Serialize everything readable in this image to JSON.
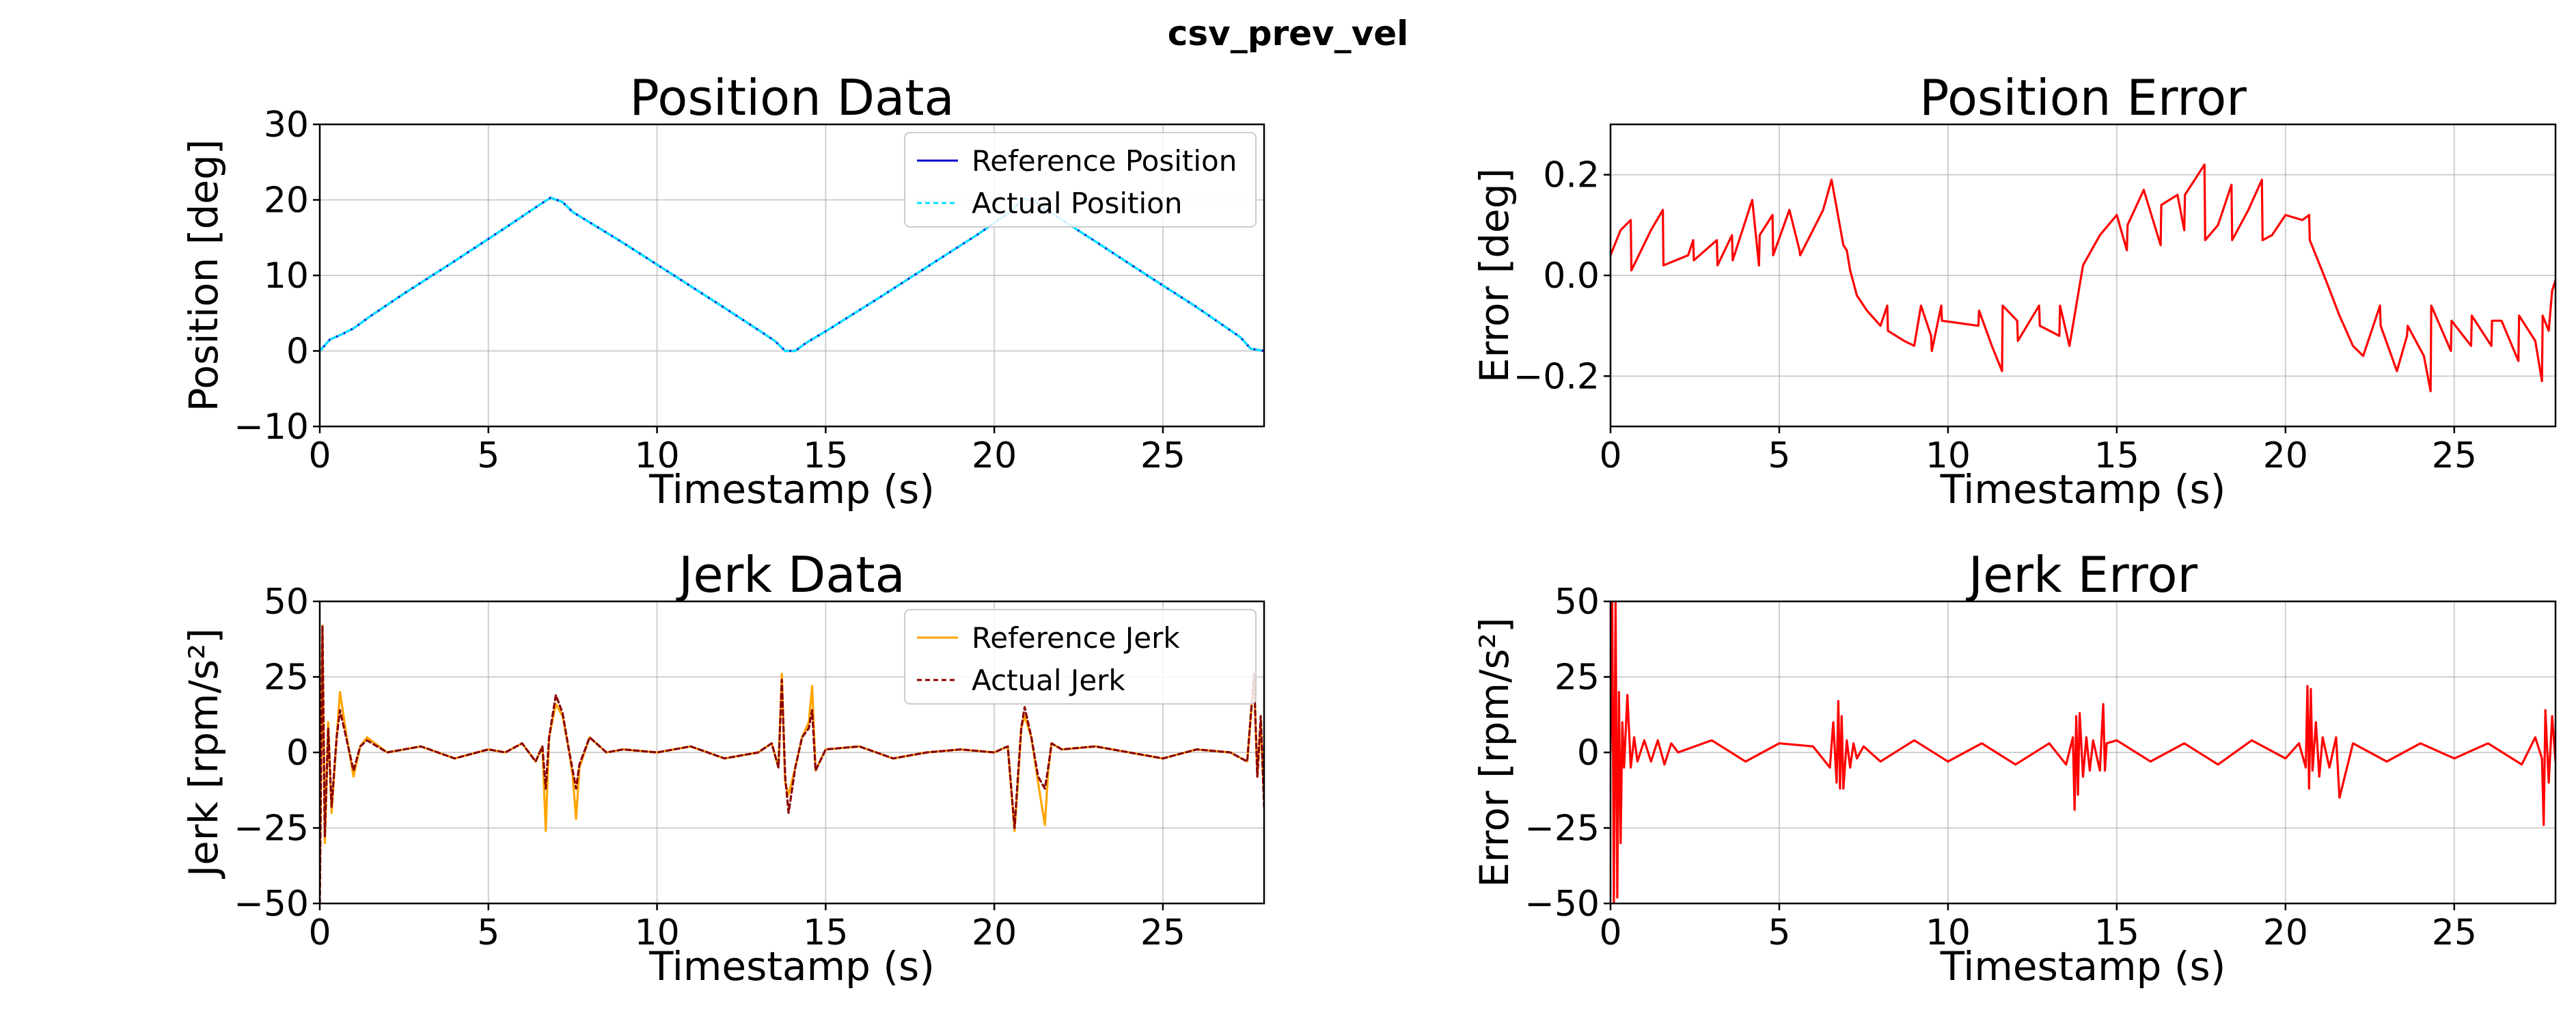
{
  "figure": {
    "suptitle": "csv_prev_vel"
  },
  "chart_data": [
    {
      "type": "line",
      "title": "Position Data",
      "xlabel": "Timestamp (s)",
      "ylabel": "Position [deg]",
      "xlim": [
        0,
        28
      ],
      "ylim": [
        -10,
        30
      ],
      "xticks": [
        0,
        5,
        10,
        15,
        20,
        25
      ],
      "yticks": [
        -10,
        0,
        10,
        20,
        30
      ],
      "ytick_labels": [
        "−10",
        "0",
        "10",
        "20",
        "30"
      ],
      "grid": true,
      "legend_position": "top-right",
      "series": [
        {
          "name": "Reference Position",
          "color": "#0000cc",
          "dash": "solid",
          "x": [
            0,
            0.3,
            0.7,
            1.0,
            1.5,
            2.5,
            4.0,
            5.5,
            6.5,
            6.85,
            7.2,
            7.5,
            9.0,
            10.5,
            12.0,
            13.0,
            13.5,
            13.8,
            14.1,
            14.4,
            15.0,
            16.5,
            18.0,
            19.5,
            20.5,
            20.85,
            21.2,
            21.5,
            23.0,
            24.5,
            26.0,
            27.3,
            27.6,
            28.0
          ],
          "y": [
            0,
            1.5,
            2.3,
            3.0,
            4.6,
            7.6,
            11.9,
            16.3,
            19.3,
            20.3,
            19.7,
            18.4,
            14.3,
            10.0,
            5.7,
            2.8,
            1.3,
            0.0,
            0.0,
            1.0,
            2.6,
            6.8,
            11.1,
            15.4,
            18.5,
            20.2,
            19.8,
            18.8,
            14.5,
            10.1,
            5.8,
            1.8,
            0.3,
            0.0
          ]
        },
        {
          "name": "Actual Position",
          "color": "#00e5ff",
          "dash": "dashed",
          "x": [
            0,
            0.3,
            0.7,
            1.0,
            1.5,
            2.5,
            4.0,
            5.5,
            6.5,
            6.85,
            7.2,
            7.5,
            9.0,
            10.5,
            12.0,
            13.0,
            13.5,
            13.8,
            14.1,
            14.4,
            15.0,
            16.5,
            18.0,
            19.5,
            20.5,
            20.85,
            21.2,
            21.5,
            23.0,
            24.5,
            26.0,
            27.3,
            27.6,
            28.0
          ],
          "y": [
            0,
            1.5,
            2.3,
            3.0,
            4.6,
            7.6,
            11.9,
            16.3,
            19.3,
            20.3,
            19.7,
            18.4,
            14.3,
            10.0,
            5.7,
            2.8,
            1.3,
            0.0,
            0.0,
            1.0,
            2.6,
            6.8,
            11.1,
            15.4,
            18.5,
            20.2,
            19.8,
            18.8,
            14.5,
            10.1,
            5.8,
            1.8,
            0.3,
            0.0
          ]
        }
      ]
    },
    {
      "type": "line",
      "title": "Position Error",
      "xlabel": "Timestamp (s)",
      "ylabel": "Error [deg]",
      "xlim": [
        0,
        28
      ],
      "ylim": [
        -0.3,
        0.3
      ],
      "xticks": [
        0,
        5,
        10,
        15,
        20,
        25
      ],
      "yticks": [
        -0.2,
        0.0,
        0.2
      ],
      "ytick_labels": [
        "−0.2",
        "0.0",
        "0.2"
      ],
      "grid": true,
      "series": [
        {
          "name": "",
          "color": "#ff0000",
          "dash": "solid",
          "x": [
            0,
            0.3,
            0.6,
            0.62,
            1.2,
            1.55,
            1.57,
            2.3,
            2.45,
            2.47,
            3.15,
            3.17,
            3.6,
            3.62,
            4.2,
            4.4,
            4.42,
            4.8,
            4.82,
            5.3,
            5.6,
            5.62,
            6.3,
            6.55,
            6.9,
            7.0,
            7.1,
            7.3,
            7.6,
            8.0,
            8.2,
            8.22,
            8.7,
            9.0,
            9.2,
            9.5,
            9.52,
            9.8,
            9.82,
            10.9,
            10.92,
            11.3,
            11.6,
            11.62,
            12.05,
            12.07,
            12.7,
            12.72,
            13.3,
            13.32,
            13.6,
            14.0,
            14.5,
            15.0,
            15.3,
            15.32,
            15.8,
            16.3,
            16.32,
            16.8,
            17.0,
            17.02,
            17.6,
            17.62,
            18.0,
            18.4,
            18.42,
            18.9,
            19.3,
            19.32,
            19.6,
            20.0,
            20.5,
            20.7,
            20.72,
            21.2,
            21.6,
            22.0,
            22.3,
            22.8,
            22.82,
            23.3,
            23.6,
            23.62,
            24.1,
            24.3,
            24.32,
            24.9,
            24.92,
            25.5,
            25.52,
            26.1,
            26.12,
            26.4,
            26.9,
            26.92,
            27.4,
            27.6,
            27.62,
            27.8,
            27.9,
            28.0
          ],
          "y": [
            0.04,
            0.09,
            0.11,
            0.01,
            0.09,
            0.13,
            0.02,
            0.04,
            0.07,
            0.03,
            0.07,
            0.02,
            0.08,
            0.03,
            0.15,
            0.02,
            0.08,
            0.12,
            0.04,
            0.13,
            0.05,
            0.04,
            0.13,
            0.19,
            0.06,
            0.05,
            0.01,
            -0.04,
            -0.07,
            -0.1,
            -0.06,
            -0.11,
            -0.13,
            -0.14,
            -0.06,
            -0.12,
            -0.15,
            -0.06,
            -0.09,
            -0.1,
            -0.07,
            -0.14,
            -0.19,
            -0.06,
            -0.09,
            -0.13,
            -0.06,
            -0.1,
            -0.12,
            -0.06,
            -0.14,
            0.02,
            0.08,
            0.12,
            0.05,
            0.1,
            0.17,
            0.06,
            0.14,
            0.16,
            0.09,
            0.16,
            0.22,
            0.07,
            0.1,
            0.18,
            0.07,
            0.13,
            0.19,
            0.07,
            0.08,
            0.12,
            0.11,
            0.12,
            0.07,
            -0.01,
            -0.08,
            -0.14,
            -0.16,
            -0.06,
            -0.1,
            -0.19,
            -0.12,
            -0.1,
            -0.16,
            -0.23,
            -0.06,
            -0.15,
            -0.09,
            -0.14,
            -0.08,
            -0.14,
            -0.09,
            -0.09,
            -0.17,
            -0.08,
            -0.13,
            -0.21,
            -0.08,
            -0.11,
            -0.03,
            -0.01
          ]
        }
      ]
    },
    {
      "type": "line",
      "title": "Jerk Data",
      "xlabel": "Timestamp (s)",
      "ylabel": "Jerk [rpm/s²]",
      "xlim": [
        0,
        28
      ],
      "ylim": [
        -50,
        50
      ],
      "xticks": [
        0,
        5,
        10,
        15,
        20,
        25
      ],
      "yticks": [
        -50,
        -25,
        0,
        25,
        50
      ],
      "ytick_labels": [
        "−50",
        "−25",
        "0",
        "25",
        "50"
      ],
      "grid": true,
      "legend_position": "top-right",
      "series": [
        {
          "name": "Reference Jerk",
          "color": "#ffa500",
          "dash": "solid",
          "x": [
            0,
            0.08,
            0.15,
            0.25,
            0.35,
            0.5,
            0.6,
            0.8,
            1.0,
            1.2,
            1.4,
            2,
            3,
            4,
            5,
            5.5,
            6,
            6.4,
            6.6,
            6.7,
            6.8,
            7.0,
            7.2,
            7.4,
            7.5,
            7.6,
            7.7,
            8.0,
            8.5,
            9,
            10,
            11,
            12,
            13,
            13.4,
            13.6,
            13.7,
            13.8,
            13.9,
            14.1,
            14.3,
            14.5,
            14.6,
            14.7,
            15.0,
            16,
            17,
            18,
            19,
            20,
            20.4,
            20.6,
            20.7,
            20.8,
            20.9,
            21.1,
            21.3,
            21.5,
            21.6,
            21.7,
            22.0,
            23,
            24,
            25,
            26,
            27,
            27.5,
            27.7,
            27.8,
            27.9,
            28.0
          ],
          "y": [
            -45,
            42,
            -30,
            10,
            -20,
            5,
            20,
            5,
            -8,
            2,
            5,
            0,
            2,
            -2,
            1,
            0,
            3,
            -3,
            2,
            -26,
            5,
            16,
            12,
            0,
            -8,
            -22,
            -5,
            5,
            0,
            1,
            0,
            2,
            -2,
            0,
            3,
            -5,
            26,
            -10,
            -14,
            -5,
            5,
            10,
            22,
            -6,
            1,
            2,
            -2,
            0,
            1,
            0,
            2,
            -26,
            -10,
            8,
            12,
            5,
            -10,
            -24,
            -6,
            3,
            1,
            2,
            0,
            -2,
            1,
            0,
            -3,
            25,
            -8,
            10,
            -15
          ]
        },
        {
          "name": "Actual Jerk",
          "color": "#8b0000",
          "dash": "dashed",
          "x": [
            0,
            0.08,
            0.15,
            0.25,
            0.35,
            0.5,
            0.6,
            0.8,
            1.0,
            1.2,
            1.4,
            2,
            3,
            4,
            5,
            5.5,
            6,
            6.4,
            6.6,
            6.7,
            6.8,
            7.0,
            7.2,
            7.4,
            7.5,
            7.6,
            7.7,
            8.0,
            8.5,
            9,
            10,
            11,
            12,
            13,
            13.4,
            13.6,
            13.7,
            13.8,
            13.9,
            14.1,
            14.3,
            14.5,
            14.6,
            14.7,
            15.0,
            16,
            17,
            18,
            19,
            20,
            20.4,
            20.6,
            20.7,
            20.8,
            20.9,
            21.1,
            21.3,
            21.5,
            21.6,
            21.7,
            22.0,
            23,
            24,
            25,
            26,
            27,
            27.5,
            27.7,
            27.8,
            27.9,
            28.0
          ],
          "y": [
            -50,
            42,
            -28,
            8,
            -18,
            5,
            14,
            4,
            -6,
            2,
            4,
            0,
            2,
            -2,
            1,
            0,
            3,
            -3,
            2,
            -12,
            5,
            19,
            13,
            0,
            -6,
            -12,
            -4,
            5,
            0,
            1,
            0,
            2,
            -2,
            0,
            3,
            -5,
            24,
            -8,
            -20,
            -5,
            5,
            8,
            14,
            -6,
            1,
            2,
            -2,
            0,
            1,
            0,
            2,
            -25,
            -8,
            8,
            15,
            5,
            -8,
            -12,
            -5,
            3,
            1,
            2,
            0,
            -2,
            1,
            0,
            -3,
            26,
            -8,
            12,
            -18
          ]
        }
      ]
    },
    {
      "type": "line",
      "title": "Jerk Error",
      "xlabel": "Timestamp (s)",
      "ylabel": "Error [rpm/s²]",
      "xlim": [
        0,
        28
      ],
      "ylim": [
        -50,
        50
      ],
      "xticks": [
        0,
        5,
        10,
        15,
        20,
        25
      ],
      "yticks": [
        -50,
        -25,
        0,
        25,
        50
      ],
      "ytick_labels": [
        "−50",
        "−25",
        "0",
        "25",
        "50"
      ],
      "grid": true,
      "series": [
        {
          "name": "",
          "color": "#ff0000",
          "dash": "solid",
          "x": [
            0,
            0.05,
            0.1,
            0.15,
            0.2,
            0.25,
            0.3,
            0.35,
            0.4,
            0.5,
            0.6,
            0.7,
            0.8,
            1.0,
            1.2,
            1.4,
            1.6,
            1.8,
            2.0,
            3.0,
            4.0,
            5.0,
            6.0,
            6.5,
            6.6,
            6.7,
            6.75,
            6.8,
            6.85,
            6.9,
            7.0,
            7.1,
            7.2,
            7.3,
            7.5,
            8.0,
            9.0,
            10.0,
            11.0,
            12.0,
            13.0,
            13.5,
            13.7,
            13.75,
            13.8,
            13.85,
            13.9,
            14.0,
            14.1,
            14.2,
            14.3,
            14.5,
            14.6,
            14.65,
            14.7,
            15.0,
            16.0,
            17.0,
            18.0,
            19.0,
            20.0,
            20.4,
            20.6,
            20.65,
            20.7,
            20.75,
            20.8,
            20.9,
            21.0,
            21.1,
            21.3,
            21.5,
            21.6,
            22.0,
            23.0,
            24.0,
            25.0,
            26.0,
            27.0,
            27.4,
            27.6,
            27.65,
            27.7,
            27.8,
            27.9,
            28.0
          ],
          "y": [
            0,
            50,
            -50,
            50,
            -48,
            20,
            -30,
            10,
            -5,
            19,
            -5,
            5,
            -3,
            4,
            -3,
            4,
            -4,
            3,
            0,
            4,
            -3,
            3,
            2,
            -5,
            10,
            -10,
            17,
            -12,
            12,
            -12,
            4,
            -5,
            3,
            -2,
            2,
            -3,
            4,
            -3,
            3,
            -4,
            3,
            -4,
            5,
            -19,
            12,
            -14,
            13,
            -8,
            5,
            -6,
            4,
            -6,
            16,
            -6,
            3,
            4,
            -3,
            3,
            -4,
            4,
            -2,
            3,
            -5,
            22,
            -12,
            21,
            -6,
            10,
            -8,
            5,
            -5,
            5,
            -15,
            3,
            -3,
            3,
            -2,
            3,
            -4,
            5,
            -2,
            -24,
            14,
            -10,
            12,
            -3
          ]
        }
      ]
    }
  ]
}
